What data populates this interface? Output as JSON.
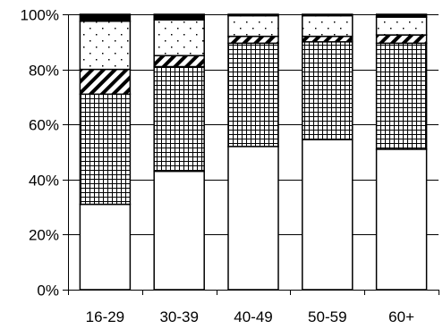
{
  "chart_data": {
    "type": "bar",
    "stacked": true,
    "percent": true,
    "categories": [
      "16-29",
      "30-39",
      "40-49",
      "50-59",
      "60+"
    ],
    "y_ticks": [
      "0%",
      "20%",
      "40%",
      "60%",
      "80%",
      "100%"
    ],
    "ylim": [
      0,
      100
    ],
    "grid": true,
    "series": [
      {
        "values": [
          31,
          43,
          52,
          54.5,
          51
        ],
        "pattern": "blank"
      },
      {
        "values": [
          40,
          38,
          37.5,
          35.5,
          38.5
        ],
        "pattern": "grid"
      },
      {
        "values": [
          9,
          4,
          2.5,
          2,
          3
        ],
        "pattern": "diagonal"
      },
      {
        "values": [
          17.5,
          13,
          7.5,
          7.5,
          6.5
        ],
        "pattern": "dots"
      },
      {
        "values": [
          2.5,
          2,
          0.5,
          0.5,
          1
        ],
        "pattern": "solid"
      }
    ],
    "colors": {
      "stroke": "#000000",
      "fill": "#ffffff",
      "solid": "#000000",
      "grid": "#000000"
    }
  }
}
